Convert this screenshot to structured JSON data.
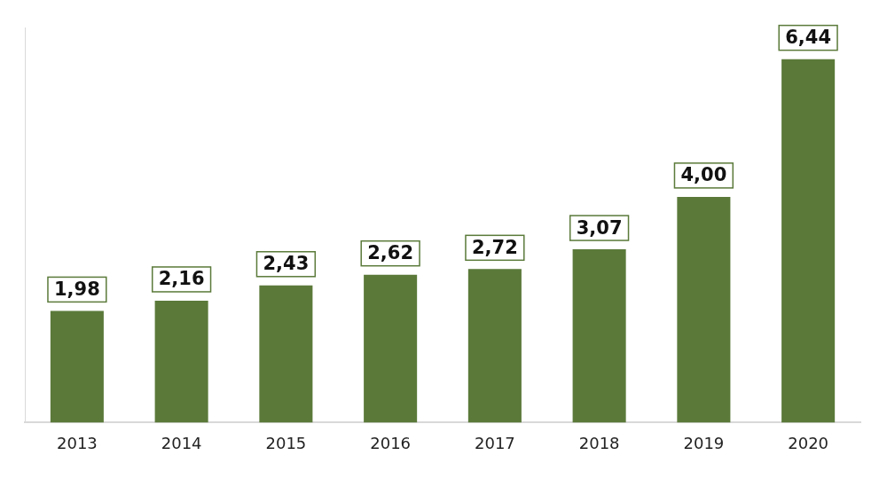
{
  "chart_data": {
    "type": "bar",
    "categories": [
      "2013",
      "2014",
      "2015",
      "2016",
      "2017",
      "2018",
      "2019",
      "2020"
    ],
    "values": [
      1.98,
      2.16,
      2.43,
      2.62,
      2.72,
      3.07,
      4.0,
      6.44
    ],
    "value_labels": [
      "1,98",
      "2,16",
      "2,43",
      "2,62",
      "2,72",
      "3,07",
      "4,00",
      "6,44"
    ],
    "color": "#5b7a3a",
    "ylim": [
      0,
      7
    ],
    "yticks": [
      0
    ],
    "grid": false,
    "data_labels": true,
    "tick_labels": "x"
  }
}
